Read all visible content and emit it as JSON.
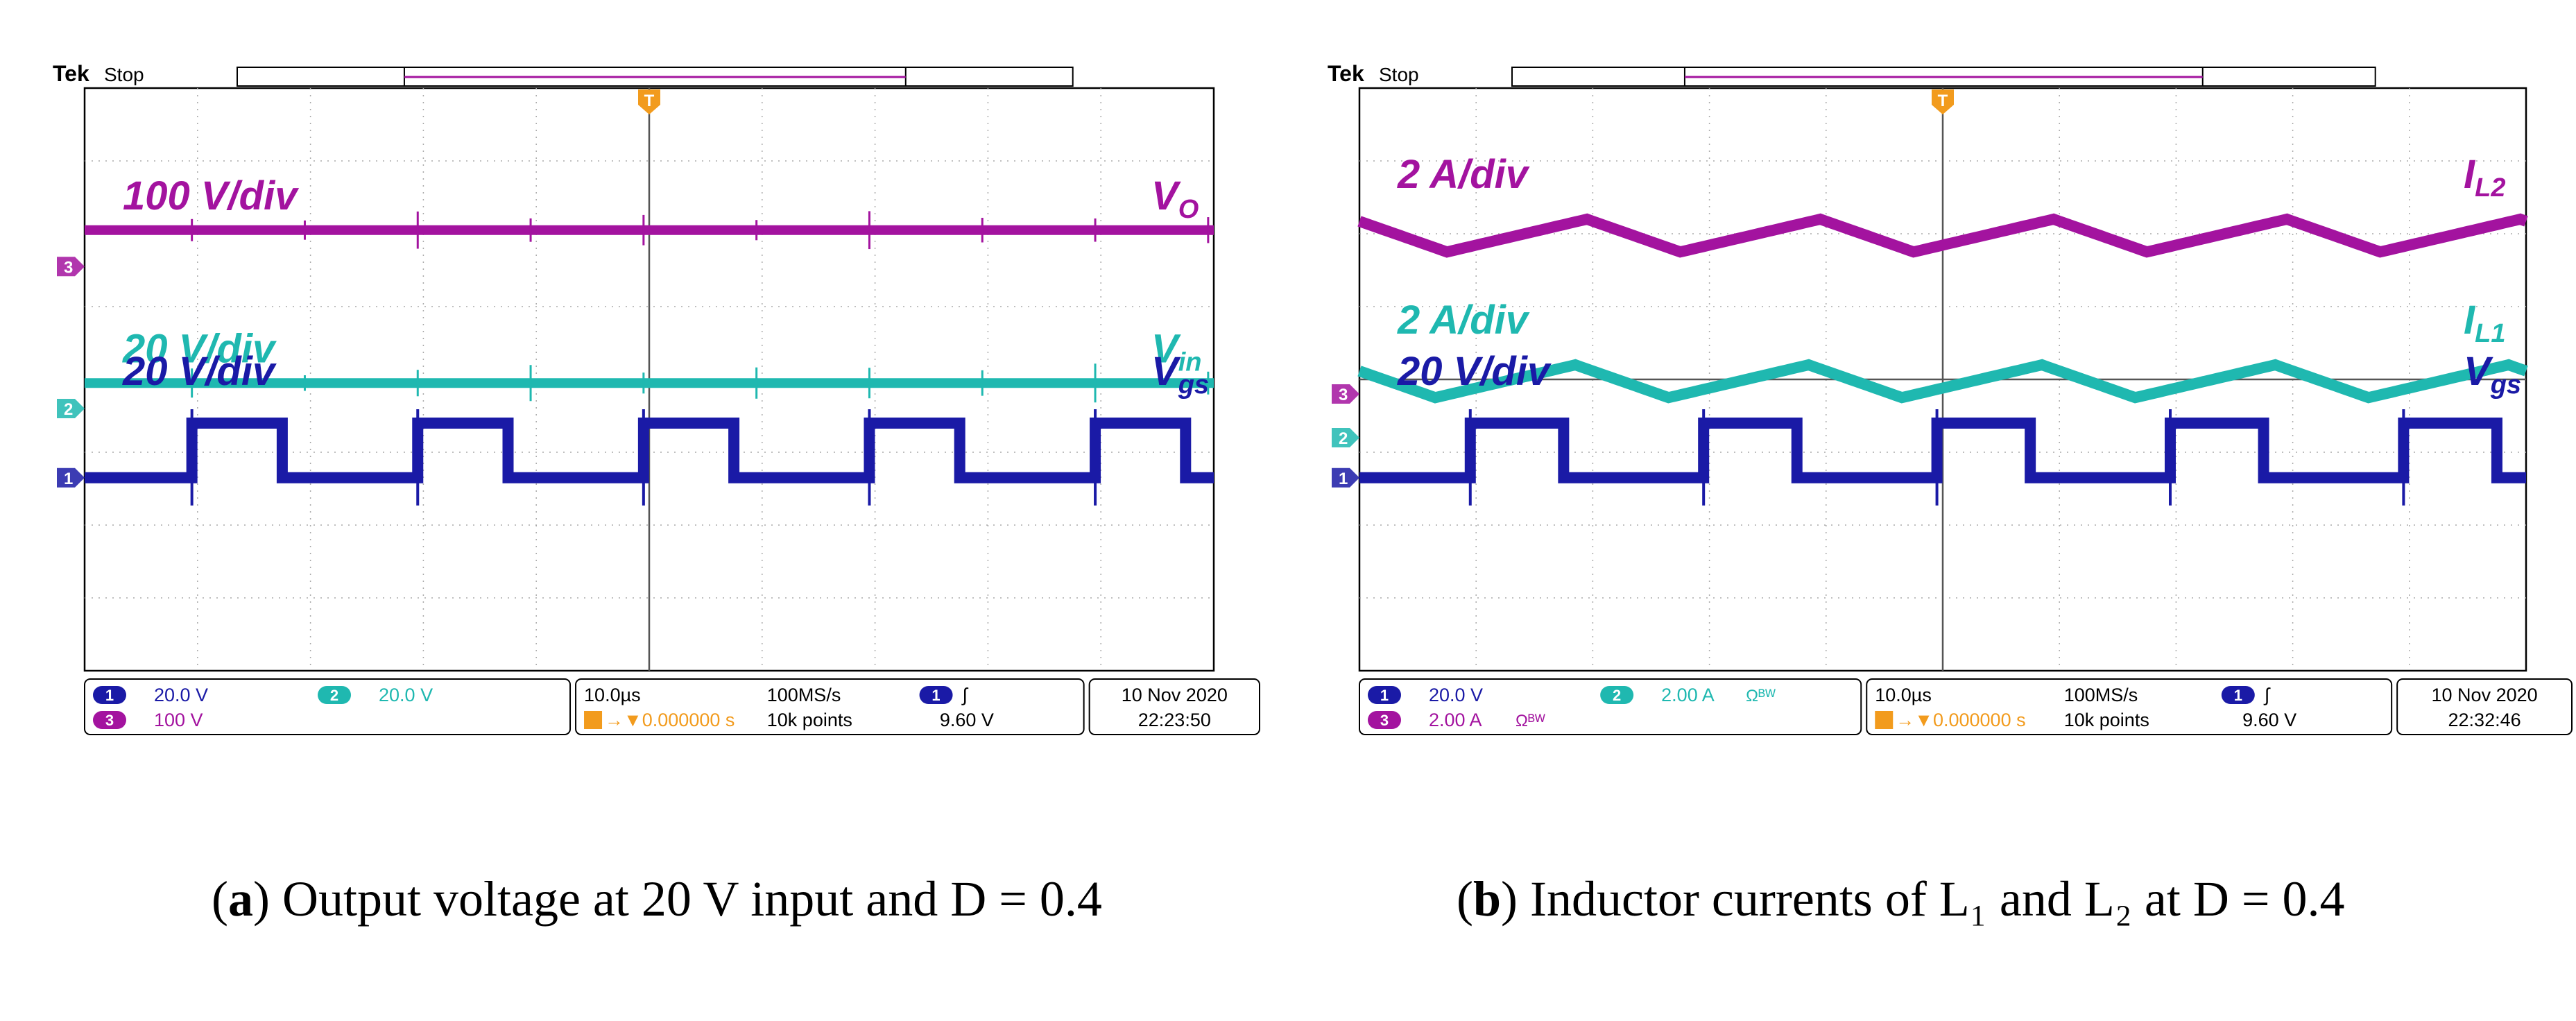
{
  "chart_data": [
    {
      "type": "line",
      "scope_brand": "Tek",
      "run_state": "Stop",
      "trigger_marker": "T",
      "time_divisions": 10,
      "voltage_divisions": 8,
      "traces": [
        {
          "name": "V_O",
          "label_main": "V",
          "label_sub": "O",
          "scale_label": "100 V/div",
          "channel": "3",
          "color": "#a3139f",
          "kind": "flat",
          "level_div": 1.95
        },
        {
          "name": "V_in",
          "label_main": "V",
          "label_sub": "in",
          "scale_label": "20 V/div",
          "channel": "2",
          "color": "#1fb8b0",
          "kind": "flat",
          "level_div": 4.05
        },
        {
          "name": "V_gs",
          "label_main": "V",
          "label_sub": "gs",
          "scale_label": "20 V/div",
          "channel": "1",
          "color": "#1a1aa6",
          "kind": "square",
          "low_div": 5.35,
          "high_div": 4.6,
          "period_div": 2.0,
          "duty": 0.4,
          "phase_div": 0.95
        }
      ],
      "channel_markers": [
        {
          "channel": "3",
          "color": "#a3139f",
          "level_div": 2.45
        },
        {
          "channel": "2",
          "color": "#1fb8b0",
          "level_div": 4.4
        },
        {
          "channel": "1",
          "color": "#1a1aa6",
          "level_div": 5.35
        }
      ],
      "status": {
        "ch1_badge": "1",
        "ch1_scale": "20.0 V",
        "ch2_badge": "2",
        "ch2_scale": "20.0 V",
        "ch2_extra": "",
        "ch3_badge": "3",
        "ch3_scale": "100 V",
        "ch3_extra": "",
        "timebase": "10.0µs",
        "sample_rate": "100MS/s",
        "trigger_source": "1",
        "trigger_slope": "∫",
        "trigger_pos": "→▼0.000000 s",
        "record_length": "10k points",
        "trigger_level": "9.60 V",
        "date": "10 Nov 2020",
        "time": "22:23:50"
      },
      "caption": {
        "letter": "a",
        "text": " Output voltage at 20 V input and D = 0.4"
      }
    },
    {
      "type": "line",
      "scope_brand": "Tek",
      "run_state": "Stop",
      "trigger_marker": "T",
      "time_divisions": 10,
      "voltage_divisions": 8,
      "traces": [
        {
          "name": "I_L2",
          "label_main": "I",
          "label_sub": "L2",
          "scale_label": "2 A/div",
          "channel": "3",
          "color": "#a3139f",
          "kind": "triangle",
          "low_div": 2.25,
          "high_div": 1.8,
          "period_div": 2.0,
          "peak_phase_div": 1.95
        },
        {
          "name": "I_L1",
          "label_main": "I",
          "label_sub": "L1",
          "scale_label": "2 A/div",
          "channel": "2",
          "color": "#1fb8b0",
          "kind": "triangle",
          "low_div": 4.25,
          "high_div": 3.8,
          "period_div": 2.0,
          "peak_phase_div": 1.85
        },
        {
          "name": "V_gs",
          "label_main": "V",
          "label_sub": "gs",
          "scale_label": "20 V/div",
          "channel": "1",
          "color": "#1a1aa6",
          "kind": "square",
          "low_div": 5.35,
          "high_div": 4.6,
          "period_div": 2.0,
          "duty": 0.4,
          "phase_div": 0.95
        }
      ],
      "channel_markers": [
        {
          "channel": "3",
          "color": "#a3139f",
          "level_div": 4.2
        },
        {
          "channel": "2",
          "color": "#1fb8b0",
          "level_div": 4.8
        },
        {
          "channel": "1",
          "color": "#1a1aa6",
          "level_div": 5.35
        }
      ],
      "status": {
        "ch1_badge": "1",
        "ch1_scale": "20.0 V",
        "ch2_badge": "2",
        "ch2_scale": "2.00 A",
        "ch2_extra": "Ωᴮᵂ",
        "ch3_badge": "3",
        "ch3_scale": "2.00 A",
        "ch3_extra": "Ωᴮᵂ",
        "timebase": "10.0µs",
        "sample_rate": "100MS/s",
        "trigger_source": "1",
        "trigger_slope": "∫",
        "trigger_pos": "→▼0.000000 s",
        "record_length": "10k points",
        "trigger_level": "9.60 V",
        "date": "10 Nov 2020",
        "time": "22:32:46"
      },
      "caption": {
        "letter": "b",
        "text": " Inductor currents of L₁ and L₂ at D = 0.4"
      }
    }
  ]
}
